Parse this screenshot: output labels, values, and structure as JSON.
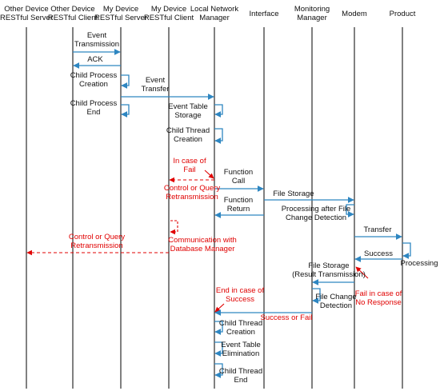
{
  "colors": {
    "line": "#000000",
    "arrow": "#2e86c1",
    "red": "#e00000"
  },
  "participants": [
    {
      "id": "odrs",
      "lines": [
        "Other Device",
        "RESTful Server"
      ]
    },
    {
      "id": "odrc",
      "lines": [
        "Other Device",
        "RESTful Client"
      ]
    },
    {
      "id": "mdrs",
      "lines": [
        "My Device",
        "RESTful Server"
      ]
    },
    {
      "id": "mdrc",
      "lines": [
        "My Device",
        "RESTful Client"
      ]
    },
    {
      "id": "lnm",
      "lines": [
        "Local  Network",
        "Manager"
      ]
    },
    {
      "id": "iface",
      "lines": [
        "Interface"
      ]
    },
    {
      "id": "mon",
      "lines": [
        "Monitoring",
        "Manager"
      ]
    },
    {
      "id": "modem",
      "lines": [
        "Modem"
      ]
    },
    {
      "id": "product",
      "lines": [
        "Product"
      ]
    }
  ],
  "labels": {
    "event_transmission": [
      "Event",
      "Transmission"
    ],
    "ack": [
      "ACK"
    ],
    "child_process_creation": [
      "Child Process",
      "Creation"
    ],
    "event_transfer": [
      "Event",
      "Transfer"
    ],
    "child_process_end": [
      "Child Process",
      "End"
    ],
    "event_table_storage": [
      "Event Table",
      "Storage"
    ],
    "child_thread_creation_1": [
      "Child Thread",
      "Creation"
    ],
    "in_case_of_fail": [
      "In case of",
      "Fail"
    ],
    "function_call": [
      "Function",
      "Call"
    ],
    "control_query_retransmission_1": [
      "Control or Query",
      "Retransmission"
    ],
    "file_storage": [
      "File Storage"
    ],
    "function_return": [
      "Function",
      "Return"
    ],
    "processing_after_file_change": [
      "Processing after File",
      "Change Detection"
    ],
    "transfer": [
      "Transfer"
    ],
    "control_query_retransmission_2": [
      "Control or Query",
      "Retransmission"
    ],
    "communication_with_db": [
      "Communication with",
      "Database Manager"
    ],
    "success": [
      "Success"
    ],
    "processing": [
      "Processing"
    ],
    "file_storage_result": [
      "File Storage",
      "(Result Transmission)"
    ],
    "fail_no_response": [
      "Fail in case of",
      "No Response"
    ],
    "end_in_case_of_success": [
      "End in case of",
      "Success"
    ],
    "file_change_detection": [
      "File Change",
      "Detection"
    ],
    "success_or_fail": [
      "Success or Fail"
    ],
    "child_thread_creation_2": [
      "Child Thread",
      "Creation"
    ],
    "event_table_elimination": [
      "Event Table",
      "Elimination"
    ],
    "child_thread_end": [
      "Child Thread",
      "End"
    ]
  }
}
